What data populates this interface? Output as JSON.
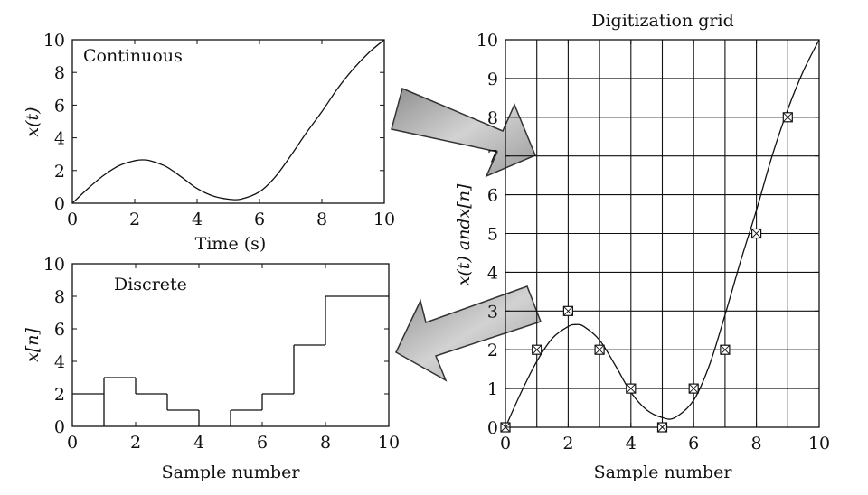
{
  "chart_data": [
    {
      "id": "continuous",
      "type": "line",
      "title": "Continuous",
      "xlabel": "Time (s)",
      "ylabel": "x(t)",
      "xlim": [
        0,
        10
      ],
      "ylim": [
        0,
        10
      ],
      "xticks": [
        "0",
        "2",
        "4",
        "6",
        "8",
        "10"
      ],
      "yticks": [
        "0",
        "2",
        "4",
        "6",
        "8",
        "10"
      ],
      "grid": false,
      "series": [
        {
          "x": [
            0,
            0.5,
            1,
            1.5,
            2,
            2.25,
            2.5,
            3,
            3.5,
            4,
            4.5,
            5,
            5.4,
            6,
            6.5,
            7,
            7.5,
            8,
            8.5,
            9,
            9.5,
            10
          ],
          "y": [
            0,
            0.9,
            1.7,
            2.3,
            2.6,
            2.65,
            2.6,
            2.25,
            1.6,
            0.9,
            0.45,
            0.25,
            0.25,
            0.7,
            1.6,
            2.9,
            4.3,
            5.6,
            7.0,
            8.2,
            9.2,
            10.0
          ]
        }
      ]
    },
    {
      "id": "discrete",
      "type": "step",
      "title": "Discrete",
      "xlabel": "Sample number",
      "ylabel": "x[n]",
      "xlim": [
        0,
        10
      ],
      "ylim": [
        0,
        10
      ],
      "xticks": [
        "0",
        "2",
        "4",
        "6",
        "8",
        "10"
      ],
      "yticks": [
        "0",
        "2",
        "4",
        "6",
        "8",
        "10"
      ],
      "grid": false,
      "series": [
        {
          "x": [
            1,
            2,
            3,
            4,
            5,
            6,
            7,
            8,
            9,
            10
          ],
          "y": [
            2,
            3,
            2,
            1,
            0,
            1,
            2,
            5,
            8,
            8
          ]
        }
      ]
    },
    {
      "id": "digitization",
      "type": "line+scatter",
      "title": "Digitization grid",
      "xlabel": "Sample number",
      "ylabel": "x(t) andx[n]",
      "xlim": [
        0,
        10
      ],
      "ylim": [
        0,
        10
      ],
      "xticks": [
        "0",
        "2",
        "4",
        "6",
        "8",
        "10"
      ],
      "yticks": [
        "0",
        "1",
        "2",
        "3",
        "4",
        "5",
        "6",
        "7",
        "8",
        "9",
        "10"
      ],
      "grid": true,
      "series": [
        {
          "type": "line",
          "x": [
            0,
            0.5,
            1,
            1.5,
            2,
            2.25,
            2.5,
            3,
            3.5,
            4,
            4.5,
            5,
            5.4,
            6,
            6.5,
            7,
            7.5,
            8,
            8.5,
            9,
            9.5,
            10
          ],
          "y": [
            0,
            0.9,
            1.7,
            2.3,
            2.6,
            2.65,
            2.6,
            2.25,
            1.6,
            0.9,
            0.45,
            0.25,
            0.25,
            0.7,
            1.6,
            2.9,
            4.3,
            5.6,
            7.0,
            8.2,
            9.2,
            10.0
          ]
        },
        {
          "type": "scatter",
          "marker": "boxed-x",
          "x": [
            0,
            1,
            2,
            3,
            4,
            5,
            6,
            7,
            8,
            9
          ],
          "y": [
            0,
            2,
            3,
            2,
            1,
            0,
            1,
            2,
            5,
            8
          ]
        }
      ]
    }
  ],
  "colors": {
    "line": "#111111",
    "arrow_fill": "#a9a9a9",
    "arrow_edge": "#333333"
  }
}
